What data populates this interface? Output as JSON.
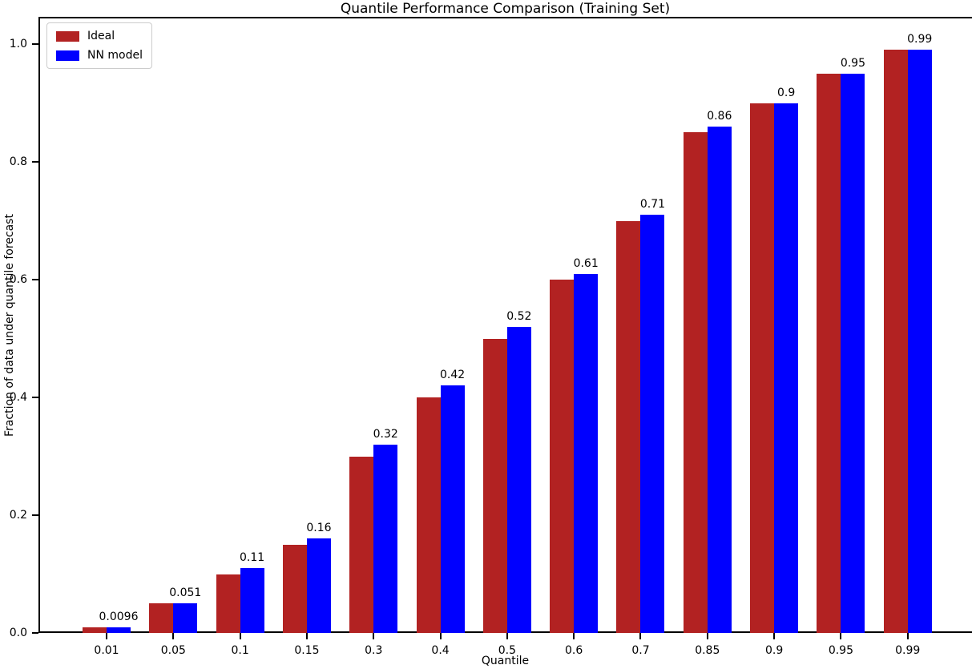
{
  "chart_data": {
    "type": "bar",
    "title": "Quantile Performance Comparison (Training Set)",
    "xlabel": "Quantile",
    "ylabel": "Fraction of data under quantile forecast",
    "categories": [
      "0.01",
      "0.05",
      "0.1",
      "0.15",
      "0.3",
      "0.4",
      "0.5",
      "0.6",
      "0.7",
      "0.85",
      "0.9",
      "0.95",
      "0.99"
    ],
    "series": [
      {
        "name": "Ideal",
        "color": "#B22222",
        "values": [
          0.01,
          0.05,
          0.1,
          0.15,
          0.3,
          0.4,
          0.5,
          0.6,
          0.7,
          0.85,
          0.9,
          0.95,
          0.99
        ]
      },
      {
        "name": "NN model",
        "color": "#0000FF",
        "values": [
          0.0096,
          0.051,
          0.11,
          0.16,
          0.32,
          0.42,
          0.52,
          0.61,
          0.71,
          0.86,
          0.9,
          0.95,
          0.99
        ]
      }
    ],
    "bar_labels": [
      "0.0096",
      "0.051",
      "0.11",
      "0.16",
      "0.32",
      "0.42",
      "0.52",
      "0.61",
      "0.71",
      "0.86",
      "0.9",
      "0.95",
      "0.99"
    ],
    "yticks": [
      "0.0",
      "0.2",
      "0.4",
      "0.6",
      "0.8",
      "1.0"
    ],
    "ylim": [
      0,
      1.046
    ],
    "grid": false,
    "legend_position": "upper left"
  }
}
